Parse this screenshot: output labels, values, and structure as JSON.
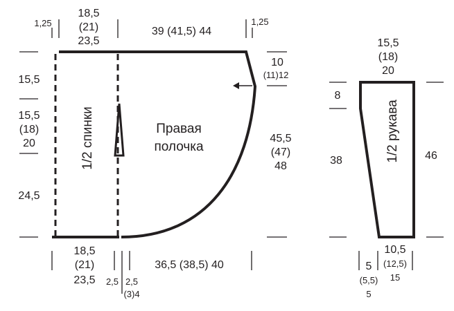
{
  "back_front": {
    "top": {
      "edge_left": "1,25",
      "back_width": [
        "18,5",
        "(21)",
        "23,5"
      ],
      "front_width": "39 (41,5) 44",
      "edge_right": "1,25"
    },
    "left_heights": [
      "15,5",
      "15,5",
      "(18)",
      "20",
      "24,5"
    ],
    "right": {
      "upper": [
        "10",
        "(11)12"
      ],
      "lower": [
        "45,5",
        "(47)",
        "48"
      ]
    },
    "bottom": {
      "back_width": [
        "18,5",
        "(21)",
        "23,5"
      ],
      "gap_a": "2,5",
      "gap_b": [
        "2,5",
        "(3)4"
      ],
      "front_width": "36,5 (38,5) 40"
    },
    "back_label": "1/2 спинки",
    "front_label": [
      "Правая",
      "полочка"
    ]
  },
  "sleeve": {
    "top_width": [
      "15,5",
      "(18)",
      "20"
    ],
    "left_heights": [
      "8",
      "38"
    ],
    "right_height": "46",
    "label": "1/2 рукава",
    "bottom": {
      "left": [
        "5",
        "(5,5)",
        "5"
      ],
      "right": [
        "10,5",
        "(12,5)",
        "15"
      ]
    }
  }
}
